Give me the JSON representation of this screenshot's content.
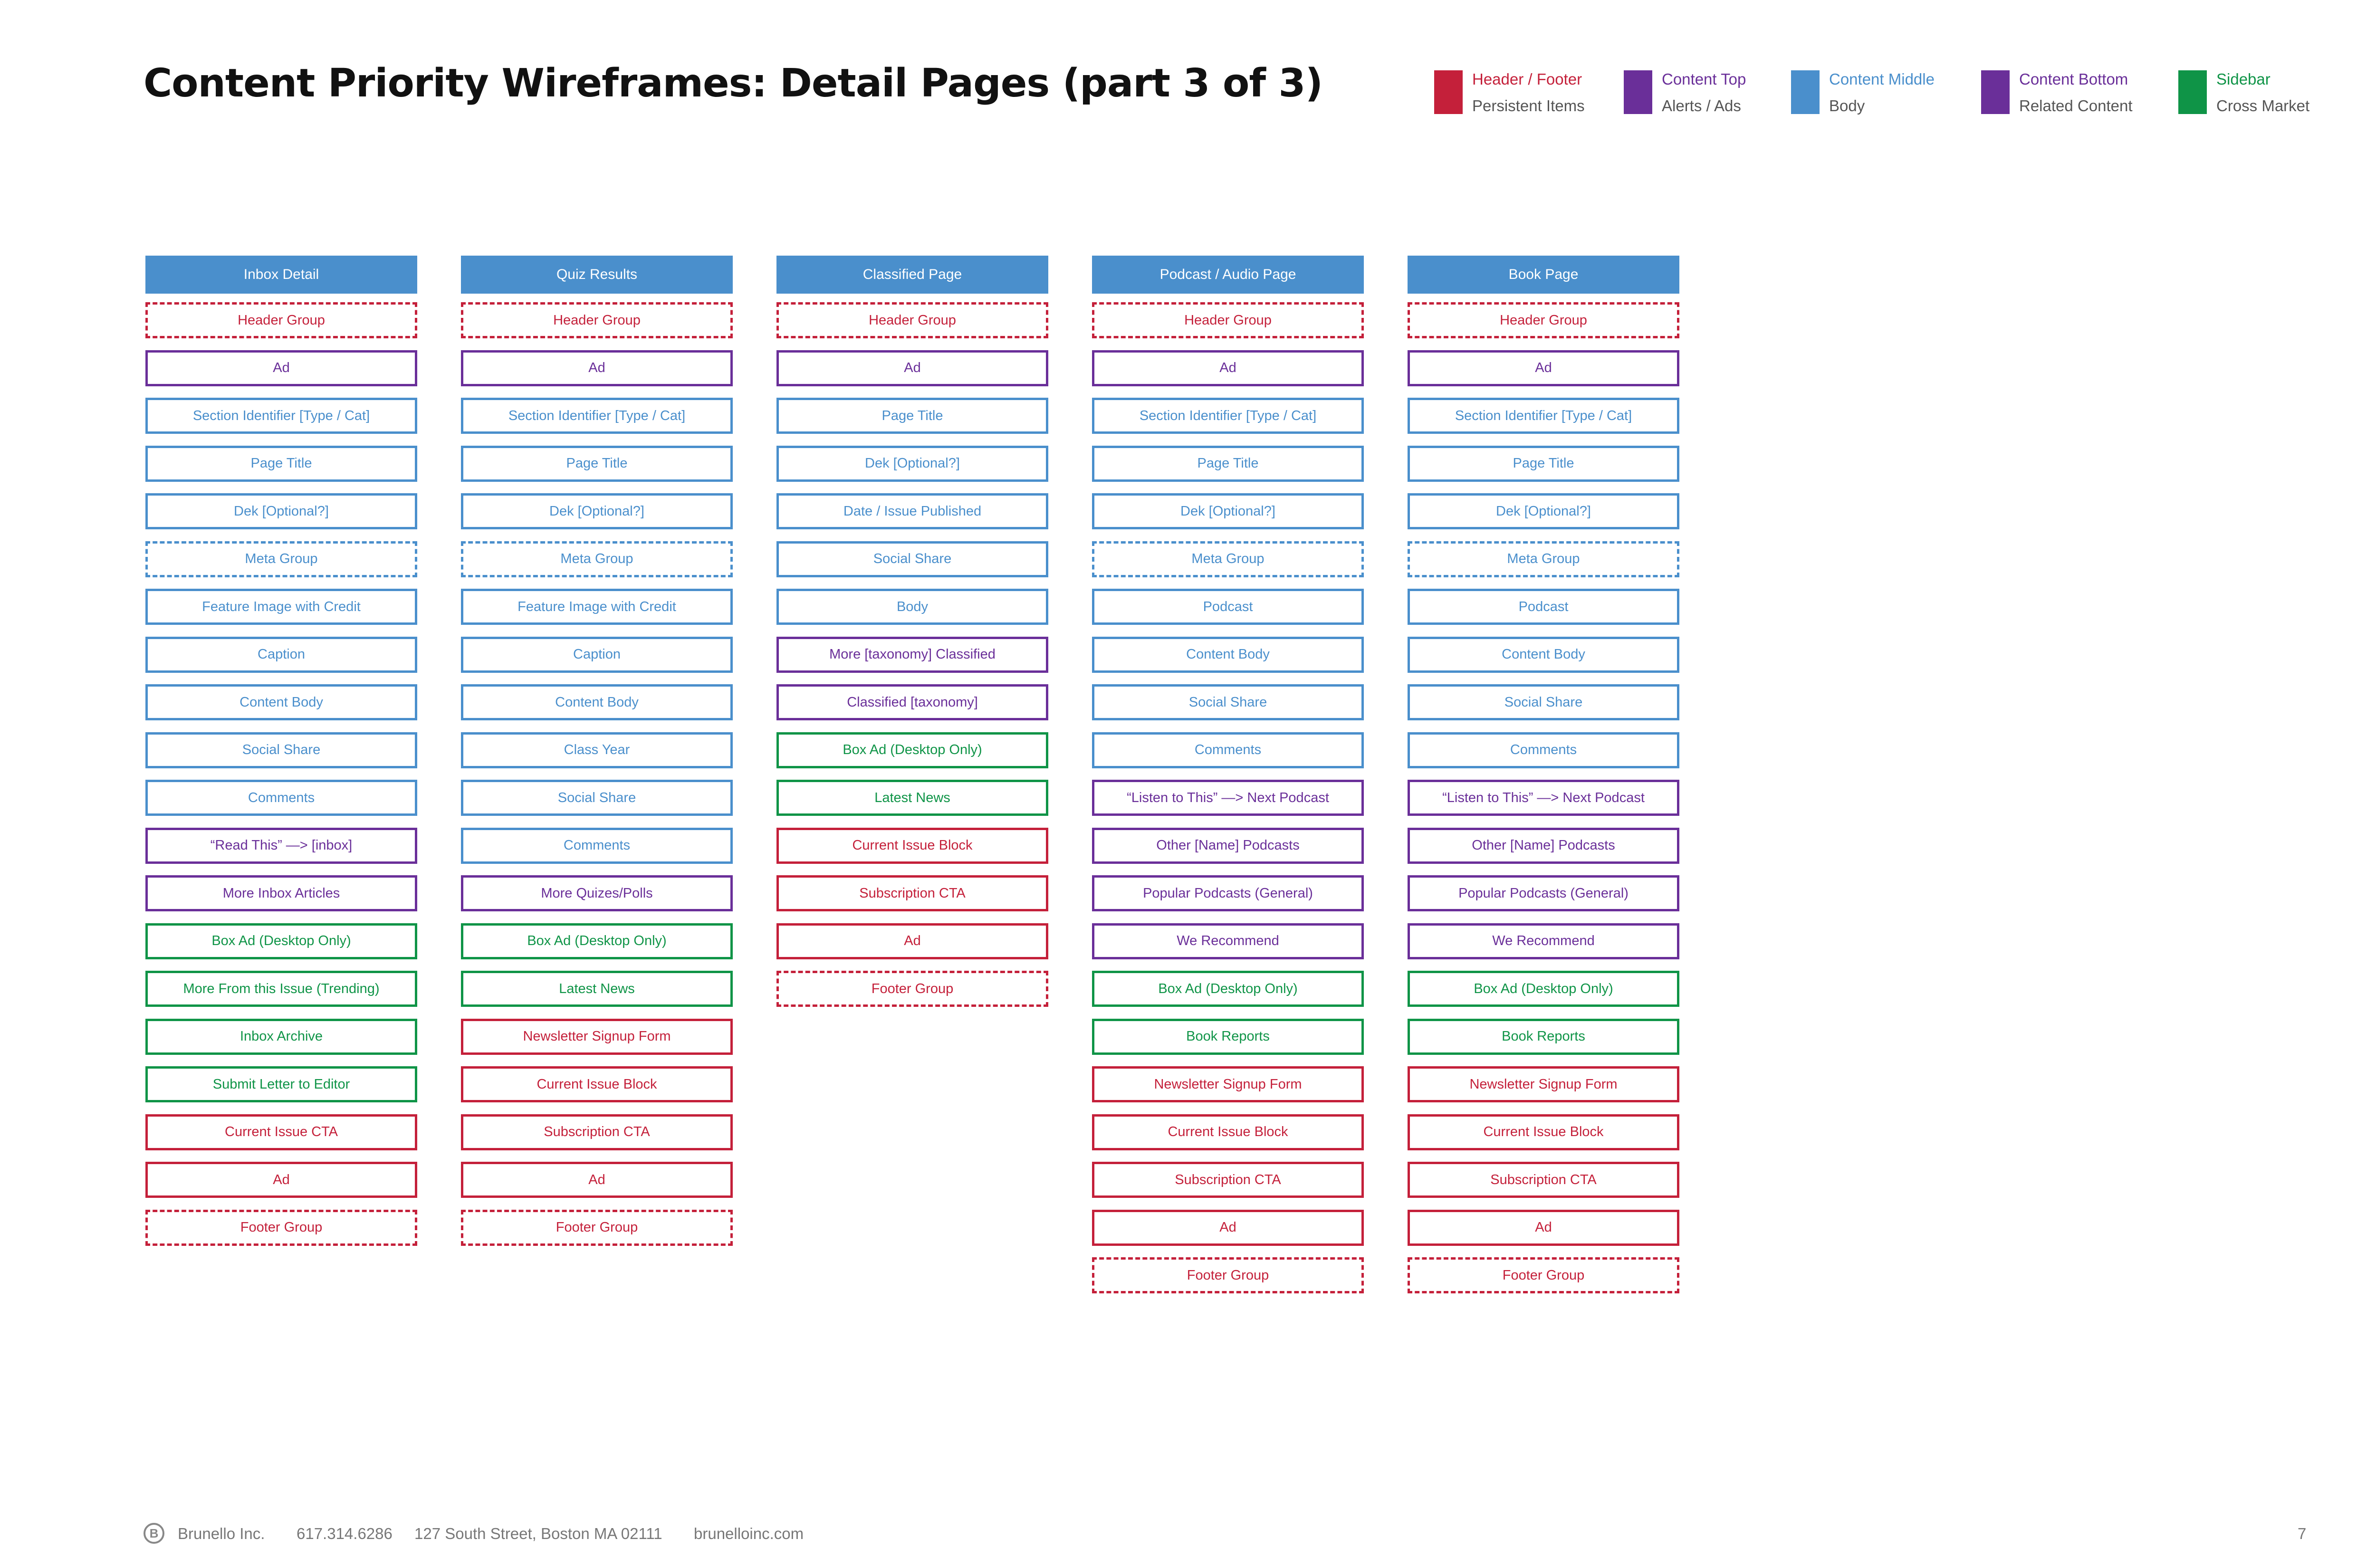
{
  "title": "Content Priority Wireframes: Detail Pages (part 3 of 3)",
  "legend": [
    {
      "label": "Header / Footer",
      "sub": "Persistent Items",
      "color": "#c4203a"
    },
    {
      "label": "Content Top",
      "sub": "Alerts / Ads",
      "color": "#6a2f99"
    },
    {
      "label": "Content Middle",
      "sub": "Body",
      "color": "#4a8fcc"
    },
    {
      "label": "Content Bottom",
      "sub": "Related Content",
      "color": "#6a2f99"
    },
    {
      "label": "Sidebar",
      "sub": "Cross Market",
      "color": "#0f9447"
    }
  ],
  "columns": [
    {
      "header": "Inbox Detail",
      "blocks": [
        {
          "label": "Header Group",
          "category": "header",
          "dashed": true
        },
        {
          "label": "Ad",
          "category": "top",
          "dashed": false
        },
        {
          "label": "Section Identifier [Type / Cat]",
          "category": "middle",
          "dashed": false
        },
        {
          "label": "Page Title",
          "category": "middle",
          "dashed": false
        },
        {
          "label": "Dek [Optional?]",
          "category": "middle",
          "dashed": false
        },
        {
          "label": "Meta Group",
          "category": "middle",
          "dashed": true
        },
        {
          "label": "Feature Image with Credit",
          "category": "middle",
          "dashed": false
        },
        {
          "label": "Caption",
          "category": "middle",
          "dashed": false
        },
        {
          "label": "Content Body",
          "category": "middle",
          "dashed": false
        },
        {
          "label": "Social Share",
          "category": "middle",
          "dashed": false
        },
        {
          "label": "Comments",
          "category": "middle",
          "dashed": false
        },
        {
          "label": "“Read This” —> [inbox]",
          "category": "bottom",
          "dashed": false
        },
        {
          "label": "More Inbox Articles",
          "category": "bottom",
          "dashed": false
        },
        {
          "label": "Box Ad (Desktop Only)",
          "category": "sidebar",
          "dashed": false
        },
        {
          "label": "More From this Issue (Trending)",
          "category": "sidebar",
          "dashed": false
        },
        {
          "label": "Inbox Archive",
          "category": "sidebar",
          "dashed": false
        },
        {
          "label": "Submit Letter to Editor",
          "category": "sidebar",
          "dashed": false
        },
        {
          "label": "Current Issue CTA",
          "category": "header",
          "dashed": false
        },
        {
          "label": "Ad",
          "category": "header",
          "dashed": false
        },
        {
          "label": "Footer Group",
          "category": "header",
          "dashed": true
        }
      ]
    },
    {
      "header": "Quiz Results",
      "blocks": [
        {
          "label": "Header Group",
          "category": "header",
          "dashed": true
        },
        {
          "label": "Ad",
          "category": "top",
          "dashed": false
        },
        {
          "label": "Section Identifier [Type / Cat]",
          "category": "middle",
          "dashed": false
        },
        {
          "label": "Page Title",
          "category": "middle",
          "dashed": false
        },
        {
          "label": "Dek [Optional?]",
          "category": "middle",
          "dashed": false
        },
        {
          "label": "Meta Group",
          "category": "middle",
          "dashed": true
        },
        {
          "label": "Feature Image with Credit",
          "category": "middle",
          "dashed": false
        },
        {
          "label": "Caption",
          "category": "middle",
          "dashed": false
        },
        {
          "label": "Content Body",
          "category": "middle",
          "dashed": false
        },
        {
          "label": "Class Year",
          "category": "middle",
          "dashed": false
        },
        {
          "label": "Social Share",
          "category": "middle",
          "dashed": false
        },
        {
          "label": "Comments",
          "category": "middle",
          "dashed": false
        },
        {
          "label": "More Quizes/Polls",
          "category": "bottom",
          "dashed": false
        },
        {
          "label": "Box Ad (Desktop Only)",
          "category": "sidebar",
          "dashed": false
        },
        {
          "label": "Latest News",
          "category": "sidebar",
          "dashed": false
        },
        {
          "label": "Newsletter Signup Form",
          "category": "header",
          "dashed": false
        },
        {
          "label": "Current Issue Block",
          "category": "header",
          "dashed": false
        },
        {
          "label": "Subscription CTA",
          "category": "header",
          "dashed": false
        },
        {
          "label": "Ad",
          "category": "header",
          "dashed": false
        },
        {
          "label": "Footer Group",
          "category": "header",
          "dashed": true
        }
      ]
    },
    {
      "header": "Classified Page",
      "blocks": [
        {
          "label": "Header Group",
          "category": "header",
          "dashed": true
        },
        {
          "label": "Ad",
          "category": "top",
          "dashed": false
        },
        {
          "label": "Page Title",
          "category": "middle",
          "dashed": false
        },
        {
          "label": "Dek [Optional?]",
          "category": "middle",
          "dashed": false
        },
        {
          "label": "Date / Issue  Published",
          "category": "middle",
          "dashed": false
        },
        {
          "label": "Social Share",
          "category": "middle",
          "dashed": false
        },
        {
          "label": "Body",
          "category": "middle",
          "dashed": false
        },
        {
          "label": "More [taxonomy] Classified",
          "category": "bottom",
          "dashed": false
        },
        {
          "label": "Classified [taxonomy]",
          "category": "bottom",
          "dashed": false
        },
        {
          "label": "Box Ad (Desktop Only)",
          "category": "sidebar",
          "dashed": false
        },
        {
          "label": "Latest News",
          "category": "sidebar",
          "dashed": false
        },
        {
          "label": "Current Issue Block",
          "category": "header",
          "dashed": false
        },
        {
          "label": "Subscription CTA",
          "category": "header",
          "dashed": false
        },
        {
          "label": "Ad",
          "category": "header",
          "dashed": false
        },
        {
          "label": "Footer Group",
          "category": "header",
          "dashed": true
        }
      ]
    },
    {
      "header": "Podcast / Audio Page",
      "blocks": [
        {
          "label": "Header Group",
          "category": "header",
          "dashed": true
        },
        {
          "label": "Ad",
          "category": "top",
          "dashed": false
        },
        {
          "label": "Section Identifier [Type / Cat]",
          "category": "middle",
          "dashed": false
        },
        {
          "label": "Page Title",
          "category": "middle",
          "dashed": false
        },
        {
          "label": "Dek [Optional?]",
          "category": "middle",
          "dashed": false
        },
        {
          "label": "Meta Group",
          "category": "middle",
          "dashed": true
        },
        {
          "label": "Podcast",
          "category": "middle",
          "dashed": false
        },
        {
          "label": "Content Body",
          "category": "middle",
          "dashed": false
        },
        {
          "label": "Social Share",
          "category": "middle",
          "dashed": false
        },
        {
          "label": "Comments",
          "category": "middle",
          "dashed": false
        },
        {
          "label": "“Listen to This” —> Next Podcast",
          "category": "bottom",
          "dashed": false
        },
        {
          "label": "Other [Name] Podcasts",
          "category": "bottom",
          "dashed": false
        },
        {
          "label": "Popular Podcasts (General)",
          "category": "bottom",
          "dashed": false
        },
        {
          "label": "We Recommend",
          "category": "bottom",
          "dashed": false
        },
        {
          "label": "Box Ad (Desktop Only)",
          "category": "sidebar",
          "dashed": false
        },
        {
          "label": "Book Reports",
          "category": "sidebar",
          "dashed": false
        },
        {
          "label": "Newsletter Signup Form",
          "category": "header",
          "dashed": false
        },
        {
          "label": "Current Issue Block",
          "category": "header",
          "dashed": false
        },
        {
          "label": "Subscription CTA",
          "category": "header",
          "dashed": false
        },
        {
          "label": "Ad",
          "category": "header",
          "dashed": false
        },
        {
          "label": "Footer Group",
          "category": "header",
          "dashed": true
        }
      ]
    },
    {
      "header": "Book Page",
      "blocks": [
        {
          "label": "Header Group",
          "category": "header",
          "dashed": true
        },
        {
          "label": "Ad",
          "category": "top",
          "dashed": false
        },
        {
          "label": "Section Identifier [Type / Cat]",
          "category": "middle",
          "dashed": false
        },
        {
          "label": "Page Title",
          "category": "middle",
          "dashed": false
        },
        {
          "label": "Dek [Optional?]",
          "category": "middle",
          "dashed": false
        },
        {
          "label": "Meta Group",
          "category": "middle",
          "dashed": true
        },
        {
          "label": "Podcast",
          "category": "middle",
          "dashed": false
        },
        {
          "label": "Content Body",
          "category": "middle",
          "dashed": false
        },
        {
          "label": "Social Share",
          "category": "middle",
          "dashed": false
        },
        {
          "label": "Comments",
          "category": "middle",
          "dashed": false
        },
        {
          "label": "“Listen to This” —> Next Podcast",
          "category": "bottom",
          "dashed": false
        },
        {
          "label": "Other [Name] Podcasts",
          "category": "bottom",
          "dashed": false
        },
        {
          "label": "Popular Podcasts (General)",
          "category": "bottom",
          "dashed": false
        },
        {
          "label": "We Recommend",
          "category": "bottom",
          "dashed": false
        },
        {
          "label": "Box Ad (Desktop Only)",
          "category": "sidebar",
          "dashed": false
        },
        {
          "label": "Book Reports",
          "category": "sidebar",
          "dashed": false
        },
        {
          "label": "Newsletter Signup Form",
          "category": "header",
          "dashed": false
        },
        {
          "label": "Current Issue Block",
          "category": "header",
          "dashed": false
        },
        {
          "label": "Subscription CTA",
          "category": "header",
          "dashed": false
        },
        {
          "label": "Ad",
          "category": "header",
          "dashed": false
        },
        {
          "label": "Footer Group",
          "category": "header",
          "dashed": true
        }
      ]
    }
  ],
  "category_colors": {
    "header": "#c4203a",
    "top": "#6a2f99",
    "middle": "#4a8fcc",
    "bottom": "#6a2f99",
    "sidebar": "#0f9447"
  },
  "footer": {
    "logo_letter": "B",
    "company": "Brunello Inc.",
    "phone": "617.314.6286",
    "address": "127 South Street, Boston MA 02111",
    "website": "brunelloinc.com",
    "page_number": "7"
  }
}
